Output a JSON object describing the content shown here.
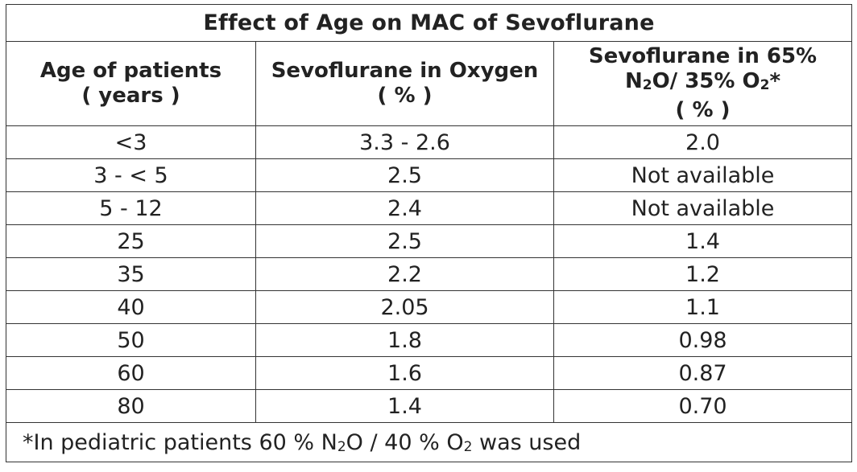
{
  "table": {
    "title": "Effect of Age on MAC of Sevoflurane",
    "headers": [
      {
        "line1": "Age of patients",
        "line2": "( years )",
        "line3": ""
      },
      {
        "line1": "Sevoflurane in Oxygen",
        "line2": "( % )",
        "line3": ""
      },
      {
        "line1": "Sevoflurane in 65%",
        "line2_pre": "N",
        "line2_sub": "2",
        "line2_mid": "O/ 35% O",
        "line2_sub2": "2",
        "line2_post": "*",
        "line3": "( % )"
      }
    ],
    "rows": [
      {
        "age": "<3",
        "oxygen": "3.3 - 2.6",
        "n2o": "2.0"
      },
      {
        "age": "3 - < 5",
        "oxygen": "2.5",
        "n2o": "Not available"
      },
      {
        "age": "5 - 12",
        "oxygen": "2.4",
        "n2o": "Not available"
      },
      {
        "age": "25",
        "oxygen": "2.5",
        "n2o": "1.4"
      },
      {
        "age": "35",
        "oxygen": "2.2",
        "n2o": "1.2"
      },
      {
        "age": "40",
        "oxygen": "2.05",
        "n2o": "1.1"
      },
      {
        "age": "50",
        "oxygen": "1.8",
        "n2o": "0.98"
      },
      {
        "age": "60",
        "oxygen": "1.6",
        "n2o": "0.87"
      },
      {
        "age": "80",
        "oxygen": "1.4",
        "n2o": "0.70"
      }
    ],
    "footnote": {
      "pre": "*In pediatric patients 60 % N",
      "sub1": "2",
      "mid": "O / 40 % O",
      "sub2": "2",
      "post": " was used"
    }
  }
}
